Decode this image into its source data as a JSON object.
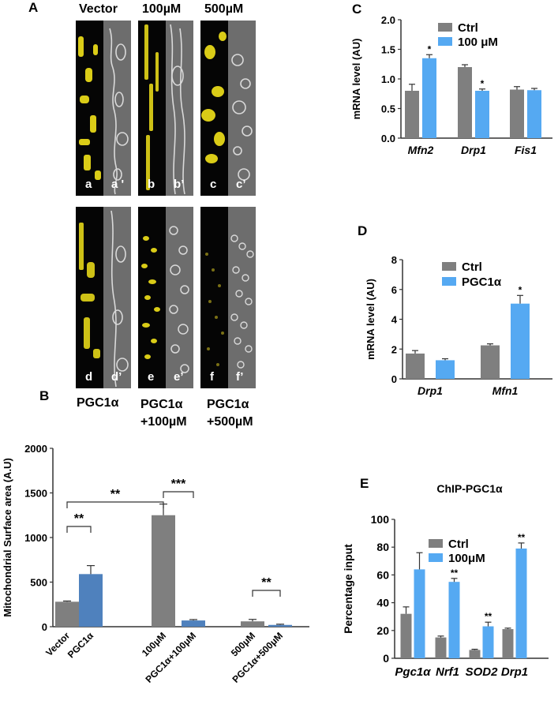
{
  "panel_letters": {
    "A": "A",
    "B": "B",
    "C": "C",
    "D": "D",
    "E": "E"
  },
  "micrographs": {
    "top_headers": [
      "Vector",
      "100µM",
      "500µM"
    ],
    "bottom_headers": [
      [
        "PGC1α",
        ""
      ],
      [
        "PGC1α",
        "+100µM"
      ],
      [
        "PGC1α",
        "+500µM"
      ]
    ],
    "top_tags": [
      [
        "a",
        "a '"
      ],
      [
        "b",
        "b’"
      ],
      [
        "c",
        "c’"
      ]
    ],
    "bottom_tags": [
      [
        "d",
        "d’"
      ],
      [
        "e",
        "e’"
      ],
      [
        "f",
        "f’"
      ]
    ],
    "colors": {
      "fluorescence": "#f2e21a",
      "skeleton": "#d9d9d9"
    }
  },
  "chart_data": [
    {
      "id": "B",
      "type": "bar",
      "ylabel": "Mitochondrial Surface area (A.U)",
      "ylim": [
        0,
        2000
      ],
      "yticks": [
        "0",
        "500",
        "1000",
        "1500",
        "2000"
      ],
      "categories": [
        "Vector",
        "PGC1α",
        "100μM",
        "PGC1α+100μM",
        "500μM",
        "PGC1α+500μM"
      ],
      "values": [
        280,
        590,
        1250,
        70,
        60,
        20
      ],
      "errors": [
        8,
        95,
        125,
        10,
        22,
        8
      ],
      "colors": [
        "#7f7f7f",
        "#4f81bd",
        "#7f7f7f",
        "#4f81bd",
        "#7f7f7f",
        "#4f81bd"
      ],
      "significance": [
        {
          "pair": [
            "Vector",
            "PGC1α"
          ],
          "label": "**"
        },
        {
          "pair": [
            "Vector",
            "100μM"
          ],
          "label": "**"
        },
        {
          "pair": [
            "100μM",
            "PGC1α+100μM"
          ],
          "label": "***"
        },
        {
          "pair": [
            "500μM",
            "PGC1α+500μM"
          ],
          "label": "**"
        }
      ]
    },
    {
      "id": "C",
      "type": "bar",
      "ylabel": "mRNA level (AU)",
      "ylim": [
        0,
        2.0
      ],
      "yticks": [
        "0.0",
        "0.5",
        "1.0",
        "1.5",
        "2.0"
      ],
      "categories": [
        "Mfn2",
        "Drp1",
        "Fis1"
      ],
      "series": [
        {
          "name": "Ctrl",
          "color": "#7f7f7f",
          "values": [
            0.8,
            1.2,
            0.82
          ],
          "errors": [
            0.11,
            0.04,
            0.05
          ]
        },
        {
          "name": "100 μM",
          "color": "#55a9f2",
          "values": [
            1.35,
            0.8,
            0.81
          ],
          "errors": [
            0.06,
            0.03,
            0.03
          ]
        }
      ],
      "annotations": [
        {
          "category": "Mfn2",
          "series": "100 μM",
          "label": "*"
        },
        {
          "category": "Drp1",
          "series": "100 μM",
          "label": "*"
        }
      ],
      "legend": "top-right"
    },
    {
      "id": "D",
      "type": "bar",
      "ylabel": "mRNA level (AU)",
      "ylim": [
        0,
        8
      ],
      "yticks": [
        "0",
        "2",
        "4",
        "6",
        "8"
      ],
      "categories": [
        "Drp1",
        "Mfn1"
      ],
      "series": [
        {
          "name": "Ctrl",
          "color": "#7f7f7f",
          "values": [
            1.7,
            2.25
          ],
          "errors": [
            0.2,
            0.1
          ]
        },
        {
          "name": "PGC1α",
          "color": "#55a9f2",
          "values": [
            1.25,
            5.05
          ],
          "errors": [
            0.1,
            0.55
          ]
        }
      ],
      "annotations": [
        {
          "category": "Mfn1",
          "series": "PGC1α",
          "label": "*"
        }
      ],
      "legend": "top-left"
    },
    {
      "id": "E",
      "type": "bar",
      "title": "ChIP-PGC1α",
      "ylabel": "Percentage input",
      "ylim": [
        0,
        100
      ],
      "yticks": [
        "0",
        "20",
        "40",
        "60",
        "80",
        "100"
      ],
      "categories": [
        "Pgc1α",
        "Nrf1",
        "SOD2",
        "Drp1"
      ],
      "series": [
        {
          "name": "Ctrl",
          "color": "#7f7f7f",
          "values": [
            32,
            15,
            6,
            21
          ],
          "errors": [
            5,
            1,
            0.5,
            0.7
          ]
        },
        {
          "name": "100μM",
          "color": "#55a9f2",
          "values": [
            64,
            55,
            23,
            79
          ],
          "errors": [
            12,
            2.5,
            3,
            4
          ]
        }
      ],
      "annotations": [
        {
          "category": "Nrf1",
          "series": "100μM",
          "label": "**"
        },
        {
          "category": "SOD2",
          "series": "100μM",
          "label": "**"
        },
        {
          "category": "Drp1",
          "series": "100μM",
          "label": "**"
        }
      ],
      "legend": "top-left"
    }
  ]
}
